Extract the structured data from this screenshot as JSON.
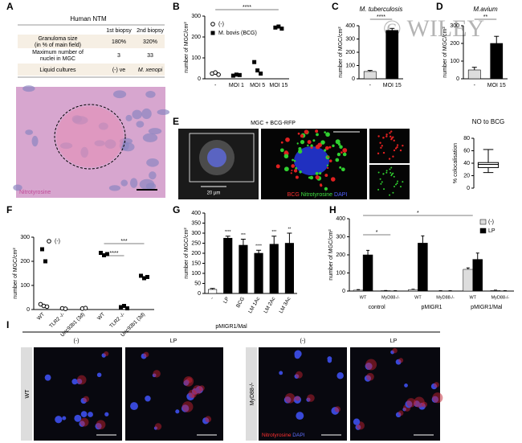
{
  "watermark": "© WILEY",
  "panel_labels": [
    "A",
    "B",
    "C",
    "D",
    "E",
    "F",
    "G",
    "H",
    "I"
  ],
  "panel_a": {
    "title": "Human NTM",
    "headers": [
      "1st biopsy",
      "2nd biopsy"
    ],
    "rows": [
      {
        "label": [
          "Granuloma size",
          "(in % of main field)"
        ],
        "cells": [
          "180%",
          "320%"
        ]
      },
      {
        "label": [
          "Maximum number of",
          "nuclei in MGC"
        ],
        "cells": [
          "3",
          "33"
        ]
      },
      {
        "label": [
          "Liquid cultures"
        ],
        "cells": [
          "(-) ve",
          "M. xenopi"
        ]
      }
    ],
    "stain": "Nitrotyrosine"
  },
  "panel_e": {
    "title": "MGC + BCG-RFP",
    "scale": "20 µm",
    "channels": [
      "BCG",
      "Nitrotyrosine",
      "DAPI"
    ]
  },
  "panel_i": {
    "title": "pMIGR1/Mal",
    "columns": [
      "(-)",
      "LP",
      "(-)",
      "LP"
    ],
    "rows": [
      "WT",
      "MyD88-/-"
    ],
    "channels": [
      "Nitrotyrosine",
      "DAPI"
    ]
  },
  "chart_data": [
    {
      "type": "dotplot",
      "ylabel": "number of MGC/cm²",
      "categories": [
        "-",
        "MOI 1",
        "MOI 5",
        "MOI 15"
      ],
      "series": [
        {
          "name": "(-)",
          "marker": "circle",
          "values": [
            [
              25,
              30,
              20
            ],
            null,
            null,
            null
          ]
        },
        {
          "name": "M. bovis (BCG)",
          "marker": "square",
          "values": [
            null,
            [
              15,
              20,
              18
            ],
            [
              80,
              40,
              25
            ],
            [
              245,
              250,
              240
            ]
          ]
        }
      ],
      "ylim": [
        0,
        300
      ],
      "yticks": [
        0,
        100,
        200,
        300
      ],
      "annotations": [
        "****"
      ]
    },
    {
      "type": "bar",
      "title": "M. tuberculosis",
      "ylabel": "number of MGC/cm²",
      "categories": [
        "-",
        "MOI 15"
      ],
      "values": [
        55,
        365
      ],
      "errors": [
        8,
        15
      ],
      "colors": [
        "#dddddd",
        "#000000"
      ],
      "ylim": [
        0,
        400
      ],
      "yticks": [
        0,
        100,
        200,
        300,
        400
      ],
      "annotations": [
        "****"
      ]
    },
    {
      "type": "bar",
      "title": "M.avium",
      "ylabel": "number of MGC/cm²",
      "categories": [
        "-",
        "MOI 15"
      ],
      "values": [
        50,
        200
      ],
      "errors": [
        15,
        40
      ],
      "colors": [
        "#dddddd",
        "#000000"
      ],
      "ylim": [
        0,
        300
      ],
      "yticks": [
        0,
        100,
        200,
        300
      ],
      "annotations": [
        "**"
      ]
    },
    {
      "type": "box",
      "title": "NO to BCG",
      "ylabel": "% colocalisation",
      "whislo": 25,
      "q1": 33,
      "med": 38,
      "q3": 41,
      "whishi": 62,
      "ylim": [
        0,
        80
      ],
      "yticks": [
        0,
        20,
        40,
        60,
        80
      ]
    },
    {
      "type": "dotplot",
      "ylabel": "number of MGC/cm²",
      "categories": [
        "WT",
        "TLR2 -/-",
        "Unc93b1 (3d)",
        "WT",
        "TLR2 -/-",
        "Unc93b1 (3d)"
      ],
      "series": [
        {
          "name": "(-)",
          "marker": "circle",
          "values": [
            [
              22,
              15,
              12
            ],
            [
              5,
              3
            ],
            [
              4,
              6
            ],
            null,
            null,
            null
          ]
        },
        {
          "marker": "square",
          "values": [
            [
              250,
              200
            ],
            null,
            null,
            [
              235,
              225,
              230
            ],
            [
              10,
              15,
              5
            ],
            [
              140,
              130,
              135
            ]
          ]
        }
      ],
      "ylim": [
        0,
        300
      ],
      "yticks": [
        0,
        100,
        200,
        300
      ],
      "annotations": [
        "****",
        "***"
      ]
    },
    {
      "type": "bar",
      "ylabel": "number of MGC/cm²",
      "categories": [
        "-",
        "LP",
        "BCG",
        "LM 1Ac",
        "LM 2Ac",
        "LM 3Ac"
      ],
      "values": [
        20,
        275,
        240,
        200,
        245,
        250
      ],
      "errors": [
        5,
        10,
        30,
        15,
        40,
        50
      ],
      "colors": [
        "#ffffff",
        "#000000",
        "#000000",
        "#000000",
        "#000000",
        "#000000"
      ],
      "significance": [
        null,
        "****",
        "***",
        "****",
        "***",
        "**"
      ],
      "ylim": [
        0,
        400
      ],
      "yticks": [
        0,
        50,
        100,
        150,
        200,
        250,
        300,
        350,
        400
      ]
    },
    {
      "type": "grouped-bar",
      "ylabel": "number of MGC/cm²",
      "categories": [
        "WT",
        "MyD88-/-",
        "WT",
        "MyD88-/-",
        "WT",
        "MyD88-/-"
      ],
      "groups": [
        "control",
        "pMIGR1",
        "pMIGR1/Mal"
      ],
      "series": [
        {
          "name": "(-)",
          "color": "#dddddd",
          "values": [
            5,
            2,
            8,
            1,
            120,
            3
          ],
          "errors": [
            3,
            1,
            2,
            1,
            8,
            2
          ]
        },
        {
          "name": "LP",
          "color": "#000000",
          "values": [
            200,
            1,
            265,
            1,
            175,
            1
          ],
          "errors": [
            25,
            1,
            40,
            1,
            35,
            1
          ]
        }
      ],
      "ylim": [
        0,
        400
      ],
      "yticks": [
        0,
        100,
        200,
        300,
        400
      ],
      "annotations": [
        "*",
        "*"
      ]
    }
  ]
}
